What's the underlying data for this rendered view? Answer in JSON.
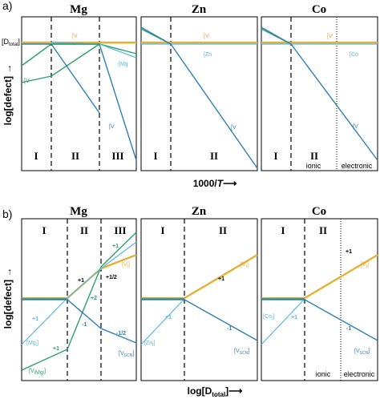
{
  "colors": {
    "orange": "#E8A33A",
    "yellow": "#D9C93A",
    "green": "#2E9E6E",
    "blue": "#2F7FB5",
    "lightblue": "#58B7E3",
    "black": "#000000"
  },
  "panel_a": {
    "label": "a)",
    "titles": [
      "Mg",
      "Zn",
      "Co"
    ],
    "y_axis": "log[defect] →",
    "x_axis_text": "1000/",
    "x_axis_italic": "T",
    "x_axis_arrow": "⟶",
    "d_total": "[D",
    "d_total_sub": "total",
    "d_total_close": "]",
    "regions_mg": [
      "I",
      "II",
      "III"
    ],
    "regions_zn": [
      "I",
      "II"
    ],
    "regions_co": [
      "I",
      "II"
    ],
    "co_ionic": "ionic",
    "co_electronic": "electronic",
    "labels": {
      "mg_vi": "[V",
      "mg_mgi": "[Mg",
      "mg_vimg": "[V",
      "mg_vscn": "[V",
      "zn_vi": "[V",
      "zn_zni": "[Zn",
      "zn_vscn": "[V",
      "co_vi": "[V",
      "co_coi": "[Co",
      "co_vscn": "[V"
    }
  },
  "panel_b": {
    "label": "b)",
    "titles": [
      "Mg",
      "Zn",
      "Co"
    ],
    "y_axis": "log[defect] →",
    "x_axis_text": "log[D",
    "x_axis_sub": "total",
    "x_axis_close": "]⟶",
    "regions_mg": [
      "I",
      "II",
      "III"
    ],
    "regions_zn": [
      "I",
      "II"
    ],
    "regions_co": [
      "I",
      "II"
    ],
    "co_ionic": "ionic",
    "co_electronic": "electronic",
    "slopes_mg": [
      "+1",
      "+1",
      "+1/2",
      "+2",
      "-1",
      "-1/2",
      "+1",
      "+1"
    ],
    "slopes_zn": [
      "+1",
      "+1",
      "-1"
    ],
    "slopes_co": [
      "+1",
      "+1",
      "-1"
    ]
  }
}
